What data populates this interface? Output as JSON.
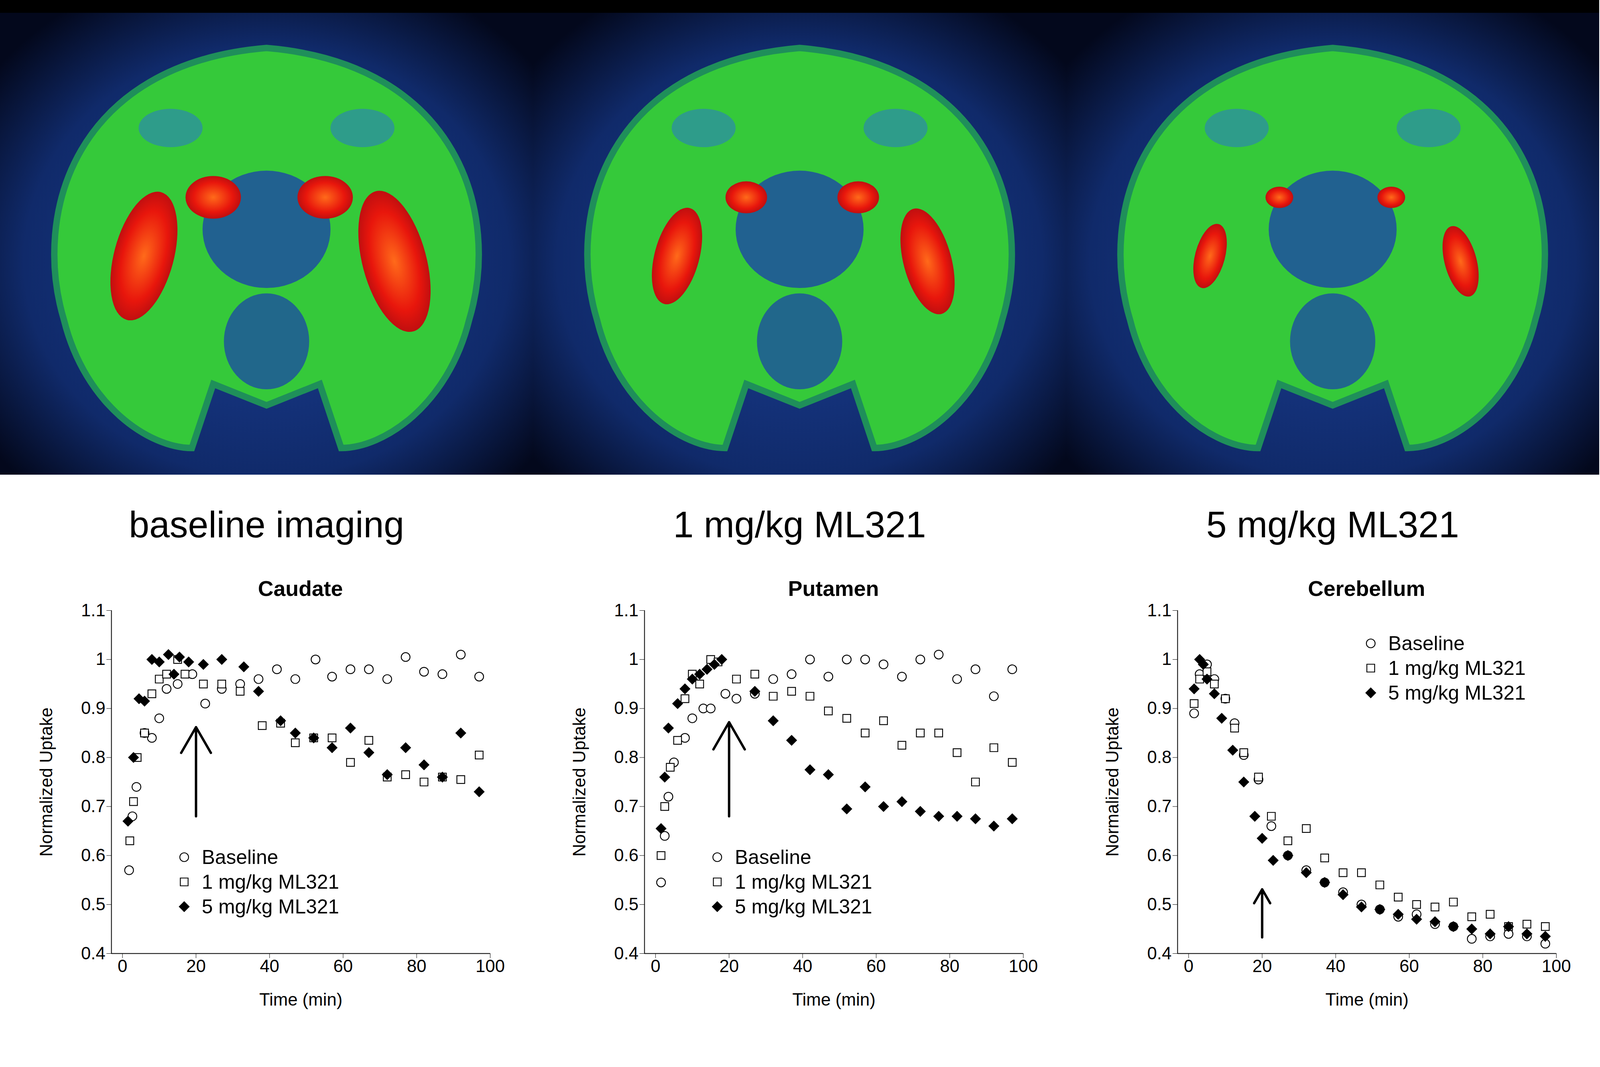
{
  "image_captions": [
    "baseline imaging",
    "1 mg/kg ML321",
    "5 mg/kg ML321"
  ],
  "chart_data": [
    {
      "type": "scatter",
      "title": "Caudate",
      "x_label": "Time (min)",
      "y_label": "Normalized Uptake",
      "xlim": [
        -3,
        100
      ],
      "ylim": [
        0.4,
        1.1
      ],
      "xticks": [
        0,
        20,
        40,
        60,
        80,
        100
      ],
      "yticks": [
        0.4,
        0.5,
        0.6,
        0.7,
        0.8,
        0.9,
        1,
        1.1
      ],
      "legend": "lower left",
      "arrow": {
        "x": 20,
        "y": [
          0.68,
          0.862
        ]
      },
      "series": [
        {
          "name": "Baseline",
          "color": "#000000",
          "marker": "open-circle",
          "x": [
            1.8,
            2.7,
            3.8,
            6,
            8,
            10,
            12,
            15,
            19,
            22.5,
            27,
            32,
            37,
            42,
            47,
            52.5,
            57,
            62,
            67,
            72,
            77,
            82,
            87,
            92,
            97
          ],
          "values": [
            0.57,
            0.68,
            0.74,
            0.85,
            0.84,
            0.88,
            0.94,
            0.95,
            0.97,
            0.91,
            0.94,
            0.95,
            0.96,
            0.98,
            0.96,
            1.0,
            0.965,
            0.98,
            0.98,
            0.96,
            1.005,
            0.975,
            0.97,
            1.01,
            0.965
          ]
        },
        {
          "name": "1 mg/kg ML321",
          "color": "#000000",
          "marker": "open-square",
          "x": [
            2,
            3,
            4,
            6,
            8,
            10,
            12,
            15,
            17,
            22,
            27,
            32,
            38,
            43,
            47,
            52,
            57,
            62,
            67,
            72,
            77,
            82,
            87,
            92,
            97
          ],
          "values": [
            0.63,
            0.71,
            0.8,
            0.85,
            0.93,
            0.96,
            0.97,
            1.0,
            0.97,
            0.95,
            0.95,
            0.935,
            0.865,
            0.87,
            0.83,
            0.84,
            0.84,
            0.79,
            0.835,
            0.76,
            0.765,
            0.75,
            0.76,
            0.755,
            0.805
          ]
        },
        {
          "name": "5 mg/kg ML321",
          "color": "#000000",
          "marker": "diamond",
          "x": [
            1.5,
            3,
            4.5,
            6,
            8,
            10,
            12.5,
            14,
            15.5,
            18,
            22,
            27,
            33,
            37,
            43,
            47,
            52,
            57,
            62,
            67,
            72,
            77,
            82,
            87,
            92,
            97
          ],
          "values": [
            0.67,
            0.8,
            0.92,
            0.915,
            1.0,
            0.995,
            1.01,
            0.97,
            1.005,
            0.995,
            0.99,
            1.0,
            0.985,
            0.935,
            0.875,
            0.85,
            0.84,
            0.82,
            0.86,
            0.81,
            0.765,
            0.82,
            0.785,
            0.76,
            0.85,
            0.73
          ]
        }
      ]
    },
    {
      "type": "scatter",
      "title": "Putamen",
      "x_label": "Time (min)",
      "y_label": "Normalized Uptake",
      "xlim": [
        -3,
        100
      ],
      "ylim": [
        0.4,
        1.1
      ],
      "xticks": [
        0,
        20,
        40,
        60,
        80,
        100
      ],
      "yticks": [
        0.4,
        0.5,
        0.6,
        0.7,
        0.8,
        0.9,
        1,
        1.1
      ],
      "legend": "lower left",
      "arrow": {
        "x": 20,
        "y": [
          0.68,
          0.872
        ]
      },
      "series": [
        {
          "name": "Baseline",
          "color": "#000000",
          "marker": "open-circle",
          "x": [
            1.5,
            2.5,
            3.5,
            5,
            8,
            10,
            13,
            15,
            19,
            22,
            27,
            32,
            37,
            42,
            47,
            52,
            57,
            62,
            67,
            72,
            77,
            82,
            87,
            92,
            97
          ],
          "values": [
            0.545,
            0.64,
            0.72,
            0.79,
            0.84,
            0.88,
            0.9,
            0.9,
            0.93,
            0.92,
            0.93,
            0.96,
            0.97,
            1.0,
            0.965,
            1.0,
            1.0,
            0.99,
            0.965,
            1.0,
            1.01,
            0.96,
            0.98,
            0.925,
            0.98
          ]
        },
        {
          "name": "1 mg/kg ML321",
          "color": "#000000",
          "marker": "open-square",
          "x": [
            1.5,
            2.5,
            4,
            6,
            8,
            10,
            12,
            15,
            17,
            22,
            27,
            32,
            37,
            42,
            47,
            52,
            57,
            62,
            67,
            72,
            77,
            82,
            87,
            92,
            97
          ],
          "values": [
            0.6,
            0.7,
            0.78,
            0.835,
            0.92,
            0.97,
            0.95,
            1.0,
            0.995,
            0.96,
            0.97,
            0.925,
            0.935,
            0.925,
            0.895,
            0.88,
            0.85,
            0.875,
            0.825,
            0.85,
            0.85,
            0.81,
            0.75,
            0.82,
            0.79
          ]
        },
        {
          "name": "5 mg/kg ML321",
          "color": "#000000",
          "marker": "diamond",
          "x": [
            1.5,
            2.5,
            3.5,
            6,
            8,
            10,
            12,
            14,
            16,
            18,
            27,
            32,
            37,
            42,
            47,
            52,
            57,
            62,
            67,
            72,
            77,
            82,
            87,
            92,
            97
          ],
          "values": [
            0.655,
            0.76,
            0.86,
            0.91,
            0.94,
            0.96,
            0.97,
            0.98,
            0.99,
            1.0,
            0.935,
            0.875,
            0.835,
            0.775,
            0.765,
            0.695,
            0.74,
            0.7,
            0.71,
            0.69,
            0.68,
            0.68,
            0.675,
            0.66,
            0.675
          ]
        }
      ]
    },
    {
      "type": "scatter",
      "title": "Cerebellum",
      "x_label": "Time (min)",
      "y_label": "Normalized Uptake",
      "xlim": [
        -3,
        100
      ],
      "ylim": [
        0.4,
        1.1
      ],
      "xticks": [
        0,
        20,
        40,
        60,
        80,
        100
      ],
      "yticks": [
        0.4,
        0.5,
        0.6,
        0.7,
        0.8,
        0.9,
        1,
        1.1
      ],
      "legend": "upper right",
      "arrow": {
        "x": 20,
        "y": [
          0.433,
          0.531
        ]
      },
      "series": [
        {
          "name": "Baseline",
          "color": "#000000",
          "marker": "open-circle",
          "x": [
            1.5,
            3,
            5,
            7,
            10,
            12.5,
            15,
            19,
            22.5,
            27,
            32,
            37,
            42,
            47,
            52,
            57,
            62,
            67,
            72,
            77,
            82,
            87,
            92,
            97
          ],
          "values": [
            0.89,
            0.97,
            0.99,
            0.96,
            0.92,
            0.87,
            0.805,
            0.755,
            0.66,
            0.6,
            0.57,
            0.545,
            0.525,
            0.5,
            0.49,
            0.475,
            0.48,
            0.46,
            0.455,
            0.43,
            0.435,
            0.44,
            0.435,
            0.42
          ]
        },
        {
          "name": "1 mg/kg ML321",
          "color": "#000000",
          "marker": "open-square",
          "x": [
            1.5,
            3,
            5,
            7,
            10,
            12.5,
            15,
            19,
            22.5,
            27,
            32,
            37,
            42,
            47,
            52,
            57,
            62,
            67,
            72,
            77,
            82,
            87,
            92,
            97
          ],
          "values": [
            0.91,
            0.96,
            0.975,
            0.95,
            0.92,
            0.86,
            0.81,
            0.76,
            0.68,
            0.63,
            0.655,
            0.595,
            0.565,
            0.565,
            0.54,
            0.515,
            0.5,
            0.495,
            0.505,
            0.475,
            0.48,
            0.455,
            0.46,
            0.455
          ]
        },
        {
          "name": "5 mg/kg ML321",
          "color": "#000000",
          "marker": "diamond",
          "x": [
            1.5,
            3,
            4,
            5,
            7,
            9,
            12,
            15,
            18,
            20,
            23,
            27,
            32,
            37,
            42,
            47,
            52,
            57,
            62,
            67,
            72,
            77,
            82,
            87,
            92,
            97
          ],
          "values": [
            0.94,
            1.0,
            0.99,
            0.96,
            0.93,
            0.88,
            0.815,
            0.75,
            0.68,
            0.635,
            0.59,
            0.6,
            0.565,
            0.545,
            0.52,
            0.495,
            0.49,
            0.48,
            0.47,
            0.465,
            0.455,
            0.45,
            0.44,
            0.455,
            0.44,
            0.435
          ]
        }
      ]
    }
  ]
}
